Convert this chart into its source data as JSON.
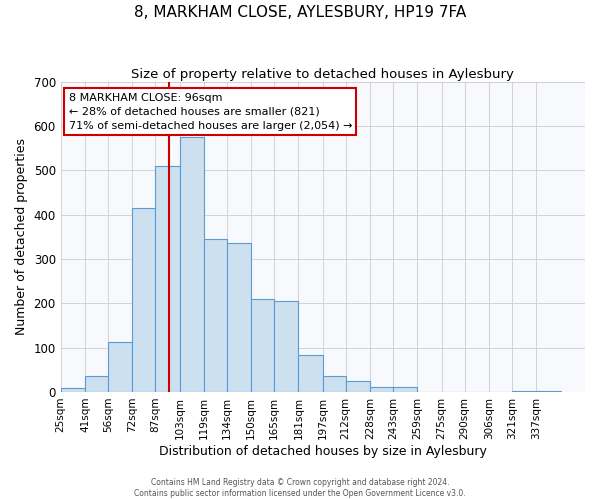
{
  "title": "8, MARKHAM CLOSE, AYLESBURY, HP19 7FA",
  "subtitle": "Size of property relative to detached houses in Aylesbury",
  "xlabel": "Distribution of detached houses by size in Aylesbury",
  "ylabel": "Number of detached properties",
  "bin_labels": [
    "25sqm",
    "41sqm",
    "56sqm",
    "72sqm",
    "87sqm",
    "103sqm",
    "119sqm",
    "134sqm",
    "150sqm",
    "165sqm",
    "181sqm",
    "197sqm",
    "212sqm",
    "228sqm",
    "243sqm",
    "259sqm",
    "275sqm",
    "290sqm",
    "306sqm",
    "321sqm",
    "337sqm"
  ],
  "bar_heights": [
    10,
    35,
    113,
    415,
    510,
    575,
    345,
    335,
    210,
    205,
    83,
    37,
    25,
    12,
    12,
    0,
    0,
    0,
    0,
    3,
    3
  ],
  "bin_edges": [
    25,
    41,
    56,
    72,
    87,
    103,
    119,
    134,
    150,
    165,
    181,
    197,
    212,
    228,
    243,
    259,
    275,
    290,
    306,
    321,
    337,
    353
  ],
  "bar_color": "#cce0f0",
  "bar_edge_color": "#5b9bd5",
  "vline_x": 96,
  "vline_color": "#cc0000",
  "ylim": [
    0,
    700
  ],
  "yticks": [
    0,
    100,
    200,
    300,
    400,
    500,
    600,
    700
  ],
  "annotation_title": "8 MARKHAM CLOSE: 96sqm",
  "annotation_line1": "← 28% of detached houses are smaller (821)",
  "annotation_line2": "71% of semi-detached houses are larger (2,054) →",
  "annotation_box_color": "#ffffff",
  "annotation_box_edge": "#cc0000",
  "grid_color": "#cccccc",
  "background_color": "#ffffff",
  "plot_bg_color": "#f7f9fc",
  "title_fontsize": 11,
  "subtitle_fontsize": 9.5,
  "footer1": "Contains HM Land Registry data © Crown copyright and database right 2024.",
  "footer2": "Contains public sector information licensed under the Open Government Licence v3.0."
}
